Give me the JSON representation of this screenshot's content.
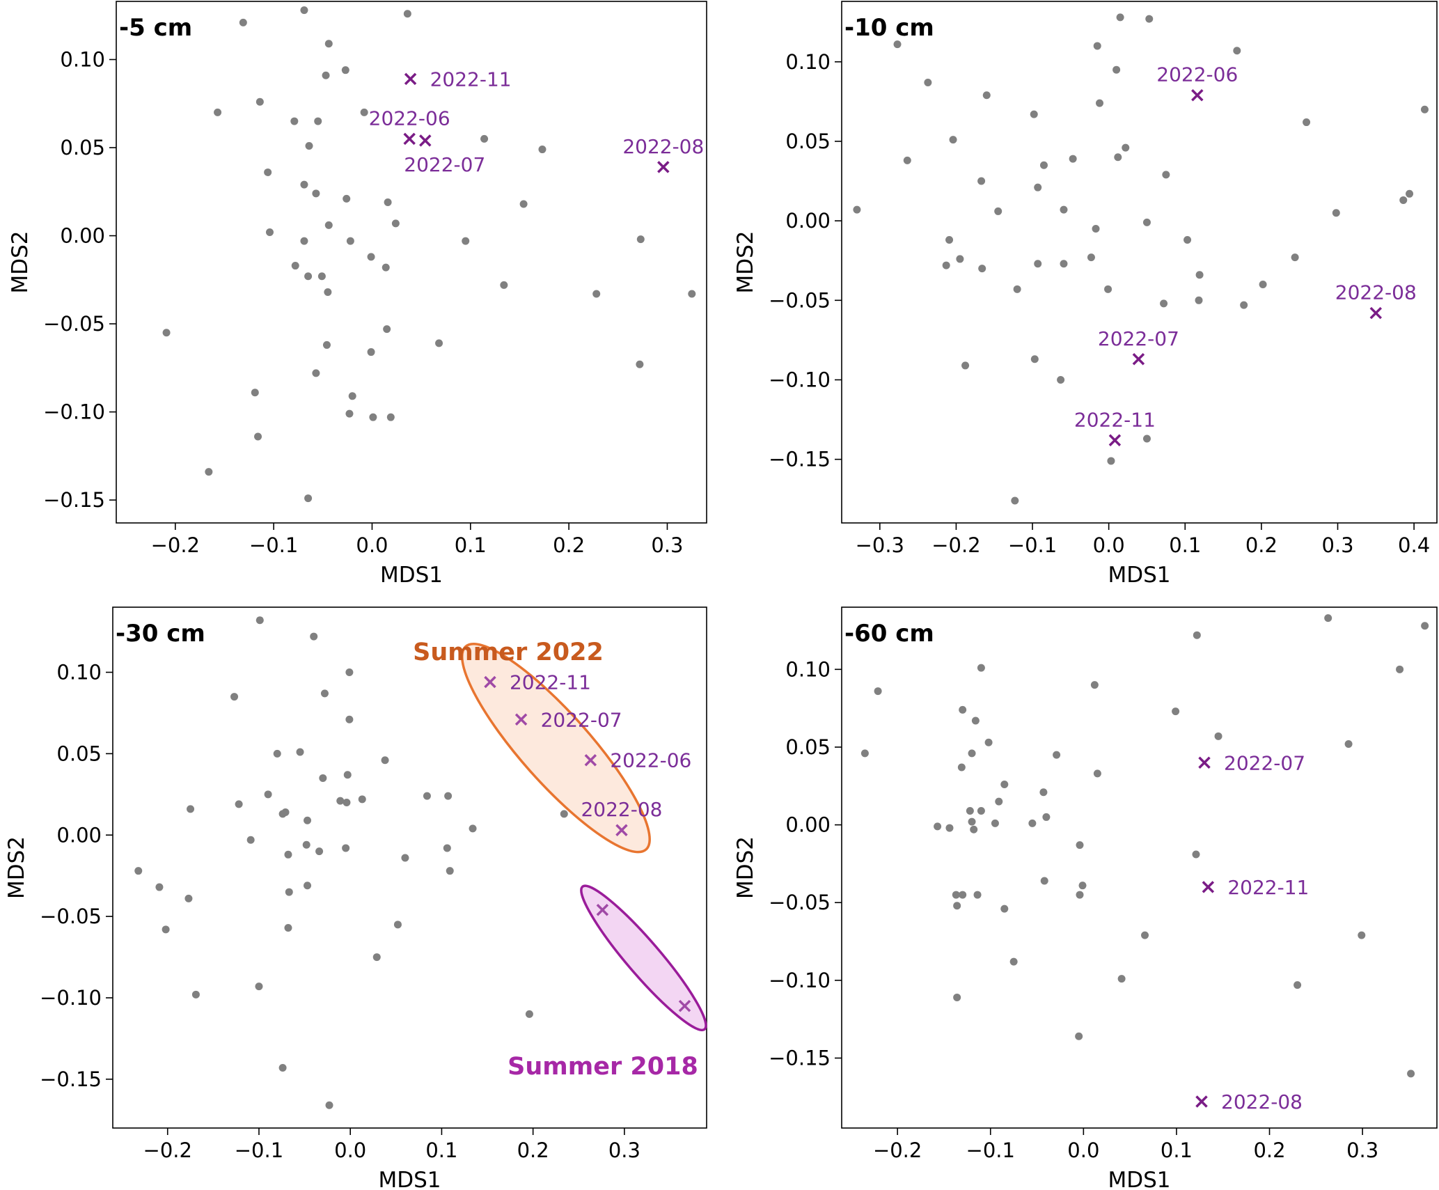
{
  "chart_data": [
    {
      "type": "scatter",
      "title": "-5 cm",
      "xlabel": "MDS1",
      "ylabel": "MDS2",
      "xlim": [
        -0.26,
        0.34
      ],
      "ylim": [
        -0.163,
        0.133
      ],
      "xticks": [
        -0.2,
        -0.1,
        0.0,
        0.1,
        0.2,
        0.3
      ],
      "xtick_labels": [
        "−0.2",
        "−0.1",
        "0.0",
        "0.1",
        "0.2",
        "0.3"
      ],
      "yticks": [
        -0.15,
        -0.1,
        -0.05,
        0.0,
        0.05,
        0.1
      ],
      "ytick_labels": [
        "−0.15",
        "−0.10",
        "−0.05",
        "0.00",
        "0.05",
        "0.10"
      ],
      "grid": false,
      "points": [
        [
          -0.069,
          0.128
        ],
        [
          0.036,
          0.126
        ],
        [
          -0.131,
          0.121
        ],
        [
          -0.044,
          0.109
        ],
        [
          -0.047,
          0.091
        ],
        [
          -0.027,
          0.094
        ],
        [
          -0.157,
          0.07
        ],
        [
          -0.114,
          0.076
        ],
        [
          -0.079,
          0.065
        ],
        [
          -0.055,
          0.065
        ],
        [
          -0.008,
          0.07
        ],
        [
          0.114,
          0.055
        ],
        [
          -0.064,
          0.051
        ],
        [
          0.173,
          0.049
        ],
        [
          -0.106,
          0.036
        ],
        [
          -0.069,
          0.029
        ],
        [
          -0.057,
          0.024
        ],
        [
          -0.026,
          0.021
        ],
        [
          0.016,
          0.019
        ],
        [
          0.154,
          0.018
        ],
        [
          -0.044,
          0.006
        ],
        [
          0.024,
          0.007
        ],
        [
          -0.104,
          0.002
        ],
        [
          -0.069,
          -0.003
        ],
        [
          -0.022,
          -0.003
        ],
        [
          0.095,
          -0.003
        ],
        [
          0.273,
          -0.002
        ],
        [
          -0.078,
          -0.017
        ],
        [
          -0.001,
          -0.012
        ],
        [
          0.014,
          -0.018
        ],
        [
          -0.065,
          -0.023
        ],
        [
          -0.051,
          -0.023
        ],
        [
          0.134,
          -0.028
        ],
        [
          -0.045,
          -0.032
        ],
        [
          0.228,
          -0.033
        ],
        [
          0.325,
          -0.033
        ],
        [
          -0.209,
          -0.055
        ],
        [
          0.015,
          -0.053
        ],
        [
          0.068,
          -0.061
        ],
        [
          -0.046,
          -0.062
        ],
        [
          -0.001,
          -0.066
        ],
        [
          0.272,
          -0.073
        ],
        [
          -0.057,
          -0.078
        ],
        [
          -0.119,
          -0.089
        ],
        [
          -0.02,
          -0.091
        ],
        [
          -0.023,
          -0.101
        ],
        [
          0.001,
          -0.103
        ],
        [
          0.019,
          -0.103
        ],
        [
          -0.116,
          -0.114
        ],
        [
          -0.166,
          -0.134
        ],
        [
          -0.065,
          -0.149
        ]
      ],
      "marked": [
        {
          "label": "2022-11",
          "x": 0.039,
          "y": 0.089,
          "label_pos": "right"
        },
        {
          "label": "2022-06",
          "x": 0.038,
          "y": 0.055,
          "label_pos": "above"
        },
        {
          "label": "2022-07",
          "x": 0.054,
          "y": 0.054,
          "label_pos": "below"
        },
        {
          "label": "2022-08",
          "x": 0.296,
          "y": 0.039,
          "label_pos": "above"
        }
      ],
      "annotations": []
    },
    {
      "type": "scatter",
      "title": "-10 cm",
      "xlabel": "MDS1",
      "ylabel": "MDS2",
      "xlim": [
        -0.35,
        0.43
      ],
      "ylim": [
        -0.19,
        0.138
      ],
      "xticks": [
        -0.3,
        -0.2,
        -0.1,
        0.0,
        0.1,
        0.2,
        0.3,
        0.4
      ],
      "xtick_labels": [
        "−0.3",
        "−0.2",
        "−0.1",
        "0.0",
        "0.1",
        "0.2",
        "0.3",
        "0.4"
      ],
      "yticks": [
        -0.15,
        -0.1,
        -0.05,
        0.0,
        0.05,
        0.1
      ],
      "ytick_labels": [
        "−0.15",
        "−0.10",
        "−0.05",
        "0.00",
        "0.05",
        "0.10"
      ],
      "grid": false,
      "points": [
        [
          0.015,
          0.128
        ],
        [
          0.053,
          0.127
        ],
        [
          -0.277,
          0.111
        ],
        [
          -0.015,
          0.11
        ],
        [
          0.168,
          0.107
        ],
        [
          -0.237,
          0.087
        ],
        [
          0.01,
          0.095
        ],
        [
          -0.16,
          0.079
        ],
        [
          -0.012,
          0.074
        ],
        [
          0.414,
          0.07
        ],
        [
          -0.098,
          0.067
        ],
        [
          0.259,
          0.062
        ],
        [
          -0.204,
          0.051
        ],
        [
          0.022,
          0.046
        ],
        [
          -0.264,
          0.038
        ],
        [
          0.012,
          0.04
        ],
        [
          -0.047,
          0.039
        ],
        [
          -0.085,
          0.035
        ],
        [
          0.075,
          0.029
        ],
        [
          -0.167,
          0.025
        ],
        [
          -0.093,
          0.021
        ],
        [
          0.394,
          0.017
        ],
        [
          0.386,
          0.013
        ],
        [
          -0.33,
          0.007
        ],
        [
          -0.145,
          0.006
        ],
        [
          -0.059,
          0.007
        ],
        [
          0.298,
          0.005
        ],
        [
          0.05,
          -0.001
        ],
        [
          -0.017,
          -0.005
        ],
        [
          -0.209,
          -0.012
        ],
        [
          0.103,
          -0.012
        ],
        [
          -0.023,
          -0.023
        ],
        [
          0.244,
          -0.023
        ],
        [
          -0.195,
          -0.024
        ],
        [
          -0.213,
          -0.028
        ],
        [
          -0.093,
          -0.027
        ],
        [
          -0.059,
          -0.027
        ],
        [
          -0.166,
          -0.03
        ],
        [
          0.119,
          -0.034
        ],
        [
          0.202,
          -0.04
        ],
        [
          -0.12,
          -0.043
        ],
        [
          -0.001,
          -0.043
        ],
        [
          0.118,
          -0.05
        ],
        [
          0.072,
          -0.052
        ],
        [
          0.177,
          -0.053
        ],
        [
          -0.097,
          -0.087
        ],
        [
          -0.188,
          -0.091
        ],
        [
          -0.063,
          -0.1
        ],
        [
          0.05,
          -0.137
        ],
        [
          0.003,
          -0.151
        ],
        [
          -0.123,
          -0.176
        ]
      ],
      "marked": [
        {
          "label": "2022-06",
          "x": 0.116,
          "y": 0.079,
          "label_pos": "above"
        },
        {
          "label": "2022-08",
          "x": 0.35,
          "y": -0.058,
          "label_pos": "above"
        },
        {
          "label": "2022-07",
          "x": 0.039,
          "y": -0.087,
          "label_pos": "above"
        },
        {
          "label": "2022-11",
          "x": 0.008,
          "y": -0.138,
          "label_pos": "above"
        }
      ],
      "annotations": []
    },
    {
      "type": "scatter",
      "title": "-30 cm",
      "xlabel": "MDS1",
      "ylabel": "MDS2",
      "xlim": [
        -0.26,
        0.39
      ],
      "ylim": [
        -0.18,
        0.14
      ],
      "xticks": [
        -0.2,
        -0.1,
        0.0,
        0.1,
        0.2,
        0.3
      ],
      "xtick_labels": [
        "−0.2",
        "−0.1",
        "0.0",
        "0.1",
        "0.2",
        "0.3"
      ],
      "yticks": [
        -0.15,
        -0.1,
        -0.05,
        0.0,
        0.05,
        0.1
      ],
      "ytick_labels": [
        "−0.15",
        "−0.10",
        "−0.05",
        "0.00",
        "0.05",
        "0.10"
      ],
      "grid": false,
      "points": [
        [
          -0.099,
          0.132
        ],
        [
          -0.04,
          0.122
        ],
        [
          -0.001,
          0.1
        ],
        [
          -0.127,
          0.085
        ],
        [
          -0.028,
          0.087
        ],
        [
          -0.001,
          0.071
        ],
        [
          -0.08,
          0.05
        ],
        [
          -0.055,
          0.051
        ],
        [
          0.038,
          0.046
        ],
        [
          -0.003,
          0.037
        ],
        [
          -0.03,
          0.035
        ],
        [
          -0.09,
          0.025
        ],
        [
          0.084,
          0.024
        ],
        [
          0.107,
          0.024
        ],
        [
          -0.011,
          0.021
        ],
        [
          -0.004,
          0.02
        ],
        [
          0.013,
          0.022
        ],
        [
          -0.175,
          0.016
        ],
        [
          -0.122,
          0.019
        ],
        [
          -0.074,
          0.013
        ],
        [
          -0.071,
          0.014
        ],
        [
          -0.047,
          0.009
        ],
        [
          0.234,
          0.013
        ],
        [
          0.134,
          0.004
        ],
        [
          -0.109,
          -0.003
        ],
        [
          -0.048,
          -0.006
        ],
        [
          -0.005,
          -0.008
        ],
        [
          -0.068,
          -0.012
        ],
        [
          -0.034,
          -0.01
        ],
        [
          0.106,
          -0.008
        ],
        [
          0.06,
          -0.014
        ],
        [
          0.109,
          -0.022
        ],
        [
          -0.232,
          -0.022
        ],
        [
          -0.209,
          -0.032
        ],
        [
          -0.047,
          -0.031
        ],
        [
          -0.067,
          -0.035
        ],
        [
          -0.177,
          -0.039
        ],
        [
          0.052,
          -0.055
        ],
        [
          -0.202,
          -0.058
        ],
        [
          -0.068,
          -0.057
        ],
        [
          0.029,
          -0.075
        ],
        [
          -0.1,
          -0.093
        ],
        [
          -0.169,
          -0.098
        ],
        [
          0.196,
          -0.11
        ],
        [
          -0.074,
          -0.143
        ],
        [
          -0.023,
          -0.166
        ]
      ],
      "marked": [
        {
          "label": "2022-11",
          "x": 0.153,
          "y": 0.094,
          "label_pos": "right"
        },
        {
          "label": "2022-07",
          "x": 0.187,
          "y": 0.071,
          "label_pos": "right"
        },
        {
          "label": "2022-06",
          "x": 0.263,
          "y": 0.046,
          "label_pos": "right"
        },
        {
          "label": "2022-08",
          "x": 0.297,
          "y": 0.003,
          "label_pos": "above"
        },
        {
          "label": "",
          "x": 0.276,
          "y": -0.046,
          "label_pos": "none"
        },
        {
          "label": "",
          "x": 0.366,
          "y": -0.105,
          "label_pos": "none"
        }
      ],
      "annotations": [
        {
          "text": "Summer 2022",
          "color": "#e87530",
          "label_color": "#c85a1e",
          "fill": "#fde9dd",
          "members": [
            "2022-11",
            "2022-07",
            "2022-06",
            "2022-08"
          ]
        },
        {
          "text": "Summer 2018",
          "color": "#9a1c9a",
          "label_color": "#a628a6",
          "fill": "#f3d6f3",
          "members": [
            "",
            ""
          ]
        }
      ]
    },
    {
      "type": "scatter",
      "title": "-60 cm",
      "xlabel": "MDS1",
      "ylabel": "MDS2",
      "xlim": [
        -0.26,
        0.38
      ],
      "ylim": [
        -0.195,
        0.14
      ],
      "xticks": [
        -0.2,
        -0.1,
        0.0,
        0.1,
        0.2,
        0.3
      ],
      "xtick_labels": [
        "−0.2",
        "−0.1",
        "0.0",
        "0.1",
        "0.2",
        "0.3"
      ],
      "yticks": [
        -0.15,
        -0.1,
        -0.05,
        0.0,
        0.05,
        0.1
      ],
      "ytick_labels": [
        "−0.15",
        "−0.10",
        "−0.05",
        "0.00",
        "0.05",
        "0.10"
      ],
      "grid": false,
      "points": [
        [
          0.263,
          0.133
        ],
        [
          0.367,
          0.128
        ],
        [
          0.122,
          0.122
        ],
        [
          -0.11,
          0.101
        ],
        [
          0.34,
          0.1
        ],
        [
          -0.221,
          0.086
        ],
        [
          0.012,
          0.09
        ],
        [
          -0.13,
          0.074
        ],
        [
          0.099,
          0.073
        ],
        [
          -0.116,
          0.067
        ],
        [
          0.145,
          0.057
        ],
        [
          -0.102,
          0.053
        ],
        [
          0.285,
          0.052
        ],
        [
          -0.235,
          0.046
        ],
        [
          -0.12,
          0.046
        ],
        [
          -0.029,
          0.045
        ],
        [
          -0.131,
          0.037
        ],
        [
          0.015,
          0.033
        ],
        [
          -0.085,
          0.026
        ],
        [
          -0.043,
          0.021
        ],
        [
          -0.091,
          0.015
        ],
        [
          -0.122,
          0.009
        ],
        [
          -0.11,
          0.009
        ],
        [
          -0.04,
          0.005
        ],
        [
          -0.12,
          0.002
        ],
        [
          -0.157,
          -0.001
        ],
        [
          -0.144,
          -0.002
        ],
        [
          -0.095,
          0.001
        ],
        [
          -0.055,
          0.001
        ],
        [
          -0.118,
          -0.003
        ],
        [
          -0.004,
          -0.013
        ],
        [
          0.121,
          -0.019
        ],
        [
          -0.042,
          -0.036
        ],
        [
          -0.001,
          -0.039
        ],
        [
          -0.137,
          -0.045
        ],
        [
          -0.13,
          -0.045
        ],
        [
          -0.114,
          -0.045
        ],
        [
          -0.004,
          -0.045
        ],
        [
          -0.136,
          -0.052
        ],
        [
          -0.085,
          -0.054
        ],
        [
          0.066,
          -0.071
        ],
        [
          0.299,
          -0.071
        ],
        [
          -0.075,
          -0.088
        ],
        [
          0.041,
          -0.099
        ],
        [
          0.23,
          -0.103
        ],
        [
          -0.136,
          -0.111
        ],
        [
          -0.005,
          -0.136
        ],
        [
          0.352,
          -0.16
        ]
      ],
      "marked": [
        {
          "label": "2022-07",
          "x": 0.13,
          "y": 0.04,
          "label_pos": "right"
        },
        {
          "label": "2022-11",
          "x": 0.134,
          "y": -0.04,
          "label_pos": "right"
        },
        {
          "label": "2022-08",
          "x": 0.127,
          "y": -0.178,
          "label_pos": "right"
        }
      ],
      "annotations": []
    }
  ],
  "colors": {
    "point": "#808080",
    "marker": "#7a1c86",
    "marker_label": "#7b2d98",
    "marker_in_group": "#a04aa6"
  }
}
